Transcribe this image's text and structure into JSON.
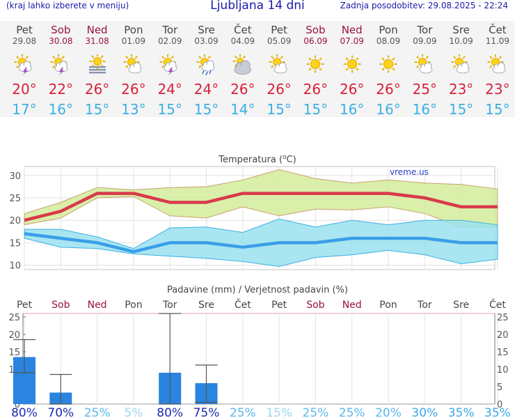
{
  "header": {
    "left": "(kraj lahko izberete v meniju)",
    "title": "Ljubljana 14 dni",
    "right": "Zadnja posodobitev: 29.08.2025 - 22:24"
  },
  "days": [
    {
      "name": "Pet",
      "date": "29.08",
      "weekend": false,
      "icon": "thunderstorm-icon",
      "tmax": "20°",
      "tmin": "17°"
    },
    {
      "name": "Sob",
      "date": "30.08",
      "weekend": true,
      "icon": "thunderstorm-icon",
      "tmax": "22°",
      "tmin": "16°"
    },
    {
      "name": "Ned",
      "date": "31.08",
      "weekend": true,
      "icon": "fog-icon",
      "tmax": "26°",
      "tmin": "15°"
    },
    {
      "name": "Pon",
      "date": "01.09",
      "weekend": false,
      "icon": "partly-cloudy-icon",
      "tmax": "26°",
      "tmin": "13°"
    },
    {
      "name": "Tor",
      "date": "02.09",
      "weekend": false,
      "icon": "thunderstorm-icon",
      "tmax": "24°",
      "tmin": "15°"
    },
    {
      "name": "Sre",
      "date": "03.09",
      "weekend": false,
      "icon": "showers-icon",
      "tmax": "24°",
      "tmin": "15°"
    },
    {
      "name": "Čet",
      "date": "04.09",
      "weekend": false,
      "icon": "cloudy-icon",
      "tmax": "26°",
      "tmin": "14°"
    },
    {
      "name": "Pet",
      "date": "05.09",
      "weekend": false,
      "icon": "partly-cloudy-icon",
      "tmax": "26°",
      "tmin": "15°"
    },
    {
      "name": "Sob",
      "date": "06.09",
      "weekend": true,
      "icon": "sunny-icon",
      "tmax": "26°",
      "tmin": "15°"
    },
    {
      "name": "Ned",
      "date": "07.09",
      "weekend": true,
      "icon": "sunny-icon",
      "tmax": "26°",
      "tmin": "16°"
    },
    {
      "name": "Pon",
      "date": "08.09",
      "weekend": false,
      "icon": "sunny-icon",
      "tmax": "26°",
      "tmin": "16°"
    },
    {
      "name": "Tor",
      "date": "09.09",
      "weekend": false,
      "icon": "partly-cloudy-icon",
      "tmax": "25°",
      "tmin": "16°"
    },
    {
      "name": "Sre",
      "date": "10.09",
      "weekend": false,
      "icon": "partly-cloudy-icon",
      "tmax": "23°",
      "tmin": "15°"
    },
    {
      "name": "Čet",
      "date": "11.09",
      "weekend": false,
      "icon": "partly-cloudy-icon",
      "tmax": "23°",
      "tmin": "15°"
    }
  ],
  "colors": {
    "weekend": "#9a1048",
    "tmax_line": "#d83a4a",
    "tmin_line": "#3a9ee8",
    "max_band": "#d4ec9a",
    "min_band": "#9ae2ee",
    "bars": "#2a84e0"
  },
  "chart_data": [
    {
      "type": "line",
      "title": "Temperatura (°C)",
      "title_text": "Temperatura (",
      "title_unit": "C)",
      "watermark": "vreme.us",
      "ylim": [
        9,
        32
      ],
      "yticks": [
        10,
        15,
        20,
        25,
        30
      ],
      "x": [
        "29.08",
        "30.08",
        "31.08",
        "01.09",
        "02.09",
        "03.09",
        "04.09",
        "05.09",
        "06.09",
        "07.09",
        "08.09",
        "09.09",
        "10.09",
        "11.09"
      ],
      "series": [
        {
          "role": "max_mean",
          "values": [
            20,
            22,
            26,
            26,
            24,
            24,
            26,
            26,
            26,
            26,
            26,
            25,
            23,
            23
          ]
        },
        {
          "role": "max_upper",
          "values": [
            21.5,
            24,
            27.3,
            26.8,
            27.3,
            27.5,
            29,
            31.3,
            29.3,
            28.3,
            29,
            28.3,
            28,
            27
          ]
        },
        {
          "role": "max_lower",
          "values": [
            19,
            20.5,
            25,
            25.3,
            21,
            20.5,
            23,
            21,
            22.5,
            22.3,
            23,
            21.5,
            18.5,
            18.5
          ]
        },
        {
          "role": "min_mean",
          "values": [
            17,
            16,
            15,
            13,
            15,
            15,
            14,
            15,
            15,
            16,
            16,
            16,
            15,
            15
          ]
        },
        {
          "role": "min_upper",
          "values": [
            18,
            18,
            16.3,
            13.7,
            18.3,
            18.5,
            17.3,
            20.3,
            18.5,
            20,
            19,
            20,
            20,
            19
          ]
        },
        {
          "role": "min_lower",
          "values": [
            16,
            14,
            13.7,
            12.5,
            12,
            11.5,
            10.8,
            9.7,
            11.7,
            12.3,
            13.3,
            12.3,
            10.3,
            11.3
          ]
        }
      ]
    },
    {
      "type": "bar",
      "title": "Padavine (mm) / Verjetnost padavin (%)",
      "ylim": [
        0,
        26
      ],
      "yticks": [
        0,
        5,
        10,
        15,
        20,
        25
      ],
      "categories": [
        "Pet",
        "Sob",
        "Ned",
        "Pon",
        "Tor",
        "Sre",
        "Čet",
        "Pet",
        "Sob",
        "Ned",
        "Pon",
        "Tor",
        "Sre",
        "Čet"
      ],
      "weekend": [
        false,
        true,
        true,
        false,
        false,
        false,
        false,
        false,
        true,
        true,
        false,
        false,
        false,
        false
      ],
      "values": [
        13.5,
        3.3,
        0,
        0,
        9,
        6,
        0,
        0,
        0,
        0,
        0,
        0,
        0,
        0
      ],
      "error_low": [
        9,
        0,
        null,
        null,
        0,
        0.5,
        null,
        null,
        null,
        null,
        null,
        null,
        null,
        null
      ],
      "error_high": [
        18.5,
        8.5,
        null,
        null,
        26,
        11.2,
        null,
        null,
        null,
        null,
        null,
        null,
        null,
        null
      ],
      "probability": [
        "80%",
        "70%",
        "25%",
        "5%",
        "80%",
        "75%",
        "25%",
        "15%",
        "25%",
        "25%",
        "20%",
        "30%",
        "35%",
        "35%"
      ]
    }
  ]
}
